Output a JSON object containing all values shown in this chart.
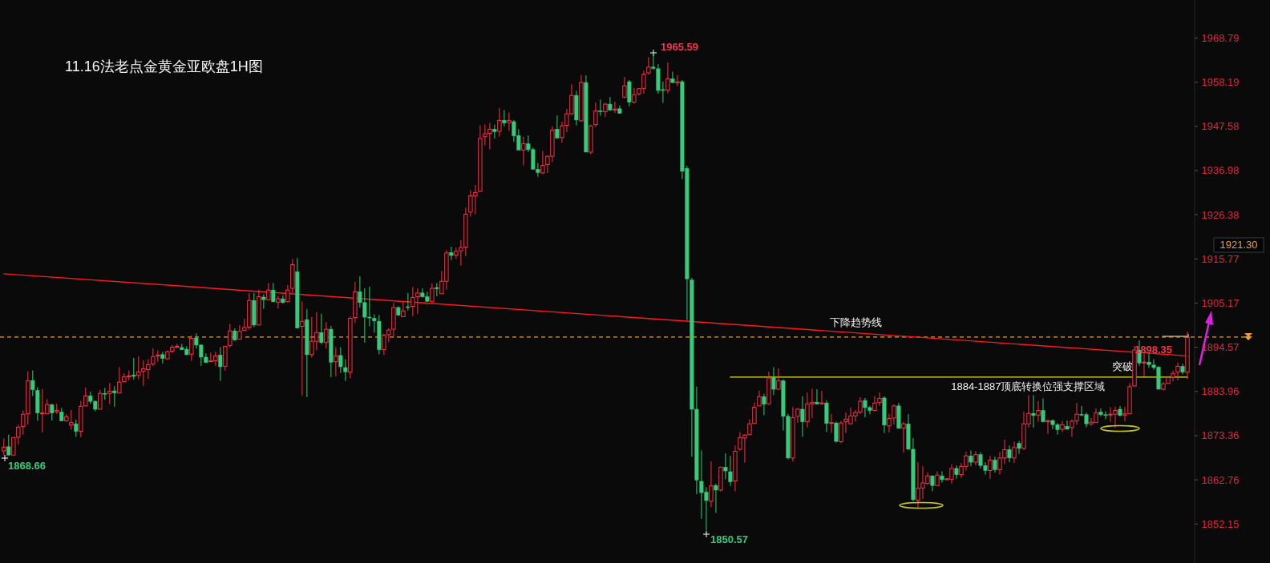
{
  "chart_data": {
    "type": "candlestick",
    "title": "11.16法老点金黄金亚欧盘1H图",
    "categories": [
      null,
      null,
      null,
      null,
      null,
      null,
      null,
      null,
      null,
      null,
      null,
      null,
      null,
      null,
      null,
      null,
      null,
      null,
      null,
      null,
      null,
      null,
      null,
      null,
      null,
      null,
      null,
      null,
      null,
      null,
      null,
      null,
      null,
      null,
      null,
      null,
      null,
      null,
      null,
      null,
      null,
      null,
      null,
      null,
      null,
      null,
      null,
      null,
      null,
      null,
      null,
      null,
      null,
      null,
      null,
      null,
      null,
      null,
      null,
      null,
      null,
      null,
      null,
      null,
      null,
      null,
      null,
      null,
      null,
      null,
      null,
      null,
      null,
      null,
      null,
      null,
      null,
      null,
      null,
      null,
      null,
      null,
      null,
      null,
      null,
      null,
      null,
      null,
      null,
      null,
      null,
      null,
      null,
      null,
      null,
      null,
      null,
      null,
      null,
      null,
      null,
      null,
      null,
      null,
      null,
      null,
      null,
      null,
      null,
      null,
      null,
      null,
      null,
      null,
      null,
      null,
      null,
      null,
      null,
      null,
      null,
      null,
      null,
      null,
      null,
      null,
      null,
      null,
      null,
      null,
      null,
      null,
      null,
      null,
      null,
      null,
      null,
      null,
      null,
      null,
      null,
      null,
      null,
      null,
      null,
      null,
      null,
      null,
      null,
      null,
      null,
      null,
      null,
      null,
      null,
      null,
      null,
      null,
      null,
      null,
      null,
      null,
      null,
      null,
      null,
      null,
      null,
      null,
      null,
      null,
      null,
      null,
      null,
      null,
      null,
      null,
      null,
      null,
      null,
      null,
      null,
      null,
      null,
      null,
      null,
      null,
      null,
      null,
      null,
      null,
      null,
      null,
      null,
      null,
      null,
      null,
      null,
      null,
      null,
      null,
      null,
      null,
      null,
      null,
      null,
      null,
      null,
      null,
      null,
      null,
      null,
      null,
      null,
      null,
      null,
      null,
      null,
      null,
      null,
      null,
      null,
      null,
      null,
      null,
      null,
      null,
      null,
      null,
      null,
      null,
      null,
      null,
      null,
      null,
      null,
      null,
      null,
      null,
      null,
      null,
      null,
      null,
      null,
      null,
      null,
      null,
      null
    ],
    "colors": [
      "#f0364a",
      "#38c97c",
      "#f0364a",
      "#f0364a",
      "#f0364a",
      "#f0364a",
      "#38c97c",
      "#38c97c",
      "#f0364a",
      "#f0364a",
      "#38c97c",
      "#f0364a",
      "#38c97c",
      "#f0364a",
      "#f0364a",
      "#38c97c",
      "#f0364a",
      "#f0364a",
      "#38c97c",
      "#38c97c",
      "#f0364a",
      "#38c97c",
      "#f0364a",
      "#38c97c",
      "#f0364a",
      "#f0364a",
      "#f0364a",
      "#38c97c",
      "#f0364a",
      "#f0364a",
      "#f0364a",
      "#f0364a",
      "#f0364a",
      "#38c97c",
      "#f0364a",
      "#f0364a",
      "#f0364a",
      "#38c97c",
      "#38c97c",
      "#f0364a",
      "#38c97c",
      "#38c97c",
      "#38c97c",
      "#f0364a",
      "#f0364a",
      "#38c97c",
      "#f0364a",
      "#f0364a",
      "#38c97c",
      "#f0364a",
      "#f0364a",
      "#f0364a",
      "#38c97c",
      "#f0364a",
      "#38c97c",
      "#f0364a",
      "#38c97c",
      "#f0364a",
      "#38c97c",
      "#f0364a",
      "#f0364a",
      "#38c97c",
      "#f0364a",
      "#38c97c",
      "#f0364a",
      "#f0364a",
      "#38c97c",
      "#f0364a",
      "#38c97c",
      "#f0364a",
      "#38c97c",
      "#38c97c",
      "#f0364a",
      "#f0364a",
      "#38c97c",
      "#38c97c",
      "#38c97c",
      "#38c97c",
      "#38c97c",
      "#f0364a",
      "#f0364a",
      "#f0364a",
      "#38c97c",
      "#f0364a",
      "#38c97c",
      "#f0364a",
      "#f0364a",
      "#38c97c",
      "#38c97c",
      "#f0364a",
      "#38c97c",
      "#f0364a",
      "#f0364a",
      "#38c97c",
      "#f0364a",
      "#f0364a",
      "#f0364a",
      "#f0364a",
      "#f0364a",
      "#f0364a",
      "#f0364a",
      "#f0364a",
      "#38c97c",
      "#f0364a",
      "#38c97c",
      "#f0364a",
      "#38c97c",
      "#38c97c",
      "#f0364a",
      "#38c97c",
      "#38c97c",
      "#38c97c",
      "#f0364a",
      "#f0364a",
      "#f0364a",
      "#38c97c",
      "#f0364a",
      "#f0364a",
      "#f0364a",
      "#38c97c",
      "#f0364a",
      "#38c97c",
      "#f0364a",
      "#f0364a",
      "#38c97c",
      "#f0364a",
      "#38c97c",
      "#f0364a",
      "#38c97c",
      "#f0364a",
      "#38c97c",
      "#f0364a",
      "#f0364a",
      "#f0364a",
      "#f0364a",
      "#38c97c",
      "#38c97c",
      "#38c97c",
      "#f0364a",
      "#38c97c",
      "#f0364a",
      "#38c97c",
      "#38c97c",
      "#38c97c",
      "#38c97c",
      "#38c97c",
      "#38c97c",
      "#f0364a",
      "#38c97c",
      "#f0364a",
      "#38c97c",
      "#38c97c",
      "#f0364a",
      "#f0364a",
      "#f0364a",
      "#f0364a",
      "#f0364a",
      "#f0364a",
      "#38c97c",
      "#f0364a",
      "#38c97c",
      "#f0364a",
      "#38c97c",
      "#38c97c",
      "#f0364a",
      "#f0364a",
      "#38c97c",
      "#f0364a",
      "#f0364a",
      "#38c97c",
      "#f0364a",
      "#38c97c",
      "#f0364a",
      "#38c97c",
      "#f0364a",
      "#f0364a",
      "#f0364a",
      "#f0364a",
      "#f0364a",
      "#38c97c",
      "#38c97c",
      "#f0364a",
      "#f0364a",
      "#38c97c",
      "#f0364a",
      "#f0364a",
      "#38c97c",
      "#f0364a",
      "#38c97c",
      "#38c97c",
      "#f0364a",
      "#f0364a",
      "#f0364a",
      "#38c97c",
      "#f0364a",
      "#38c97c",
      "#f0364a",
      "#f0364a",
      "#38c97c",
      "#f0364a",
      "#f0364a",
      "#38c97c",
      "#f0364a",
      "#38c97c",
      "#38c97c",
      "#f0364a",
      "#38c97c",
      "#f0364a",
      "#f0364a",
      "#38c97c",
      "#f0364a",
      "#38c97c",
      "#f0364a",
      "#f0364a",
      "#38c97c",
      "#f0364a",
      "#38c97c",
      "#f0364a",
      "#38c97c",
      "#38c97c",
      "#f0364a",
      "#38c97c",
      "#f0364a",
      "#f0364a",
      "#38c97c",
      "#38c97c",
      "#f0364a",
      "#f0364a",
      "#38c97c",
      "#38c97c",
      "#f0364a",
      "#f0364a",
      "#38c97c",
      "#f0364a",
      "#f0364a",
      "#f0364a",
      "#38c97c",
      "#f0364a",
      "#38c97c",
      "#38c97c",
      "#38c97c",
      "#f0364a",
      "#f0364a",
      "#f0364a",
      "#f0364a",
      "#38c97c",
      "#f0364a"
    ],
    "ohlc": [
      [
        1869.7,
        1872.7,
        1868.66,
        1870.6
      ],
      [
        1870.7,
        1873.6,
        1868.7,
        1868.7
      ],
      [
        1868.7,
        1872.9,
        1868.7,
        1872.9
      ],
      [
        1873.0,
        1876.0,
        1871.2,
        1875.4
      ],
      [
        1875.6,
        1879.4,
        1873.6,
        1878.5
      ],
      [
        1878.6,
        1888.8,
        1876.0,
        1886.5
      ],
      [
        1886.6,
        1889.0,
        1882.9,
        1884.4
      ],
      [
        1884.2,
        1885.0,
        1877.0,
        1878.8
      ],
      [
        1878.7,
        1884.5,
        1874.1,
        1878.8
      ],
      [
        1878.6,
        1882.1,
        1878.6,
        1880.8
      ],
      [
        1880.8,
        1881.0,
        1877.0,
        1878.8
      ],
      [
        1879.1,
        1881.0,
        1878.6,
        1879.4
      ],
      [
        1879.0,
        1880.0,
        1876.8,
        1876.9
      ],
      [
        1876.9,
        1878.5,
        1876.7,
        1877.9
      ],
      [
        1875.9,
        1879.5,
        1874.8,
        1876.5
      ],
      [
        1876.2,
        1877.2,
        1873.1,
        1874.4
      ],
      [
        1874.4,
        1881.7,
        1873.0,
        1880.4
      ],
      [
        1880.5,
        1884.9,
        1880.4,
        1882.9
      ],
      [
        1882.9,
        1883.9,
        1881.0,
        1881.6
      ],
      [
        1881.6,
        1881.8,
        1879.2,
        1879.7
      ],
      [
        1879.7,
        1884.3,
        1879.7,
        1883.5
      ],
      [
        1883.5,
        1884.8,
        1882.0,
        1883.4
      ],
      [
        1883.5,
        1886.0,
        1880.9,
        1884.0
      ],
      [
        1884.1,
        1885.2,
        1880.3,
        1883.6
      ],
      [
        1883.6,
        1889.8,
        1883.6,
        1886.2
      ],
      [
        1886.3,
        1888.3,
        1886.2,
        1887.5
      ],
      [
        1887.6,
        1889.0,
        1886.6,
        1887.7
      ],
      [
        1887.9,
        1892.0,
        1886.8,
        1887.6
      ],
      [
        1887.8,
        1892.4,
        1886.9,
        1888.7
      ],
      [
        1888.8,
        1891.4,
        1885.3,
        1889.4
      ],
      [
        1889.2,
        1891.7,
        1887.0,
        1890.4
      ],
      [
        1890.6,
        1894.3,
        1890.1,
        1892.3
      ],
      [
        1892.6,
        1893.8,
        1891.1,
        1892.7
      ],
      [
        1892.8,
        1893.5,
        1890.7,
        1891.9
      ],
      [
        1891.8,
        1893.8,
        1891.7,
        1893.5
      ],
      [
        1893.6,
        1895.1,
        1893.2,
        1894.6
      ],
      [
        1894.7,
        1895.4,
        1894.3,
        1894.8
      ],
      [
        1894.5,
        1895.4,
        1893.9,
        1894.0
      ],
      [
        1894.1,
        1894.8,
        1892.7,
        1892.8
      ],
      [
        1892.9,
        1897.4,
        1891.3,
        1896.7
      ],
      [
        1896.8,
        1897.9,
        1894.3,
        1895.1
      ],
      [
        1895.1,
        1895.3,
        1890.1,
        1892.2
      ],
      [
        1892.2,
        1893.1,
        1890.8,
        1890.9
      ],
      [
        1891.2,
        1893.3,
        1891.1,
        1891.3
      ],
      [
        1891.3,
        1893.5,
        1890.1,
        1892.5
      ],
      [
        1892.7,
        1894.6,
        1886.5,
        1889.9
      ],
      [
        1890.0,
        1894.9,
        1889.0,
        1894.8
      ],
      [
        1895.0,
        1900.2,
        1894.4,
        1898.5
      ],
      [
        1898.5,
        1899.1,
        1896.2,
        1896.3
      ],
      [
        1896.5,
        1899.9,
        1896.4,
        1898.4
      ],
      [
        1898.6,
        1901.4,
        1898.5,
        1899.3
      ],
      [
        1899.4,
        1907.6,
        1898.8,
        1905.8
      ],
      [
        1905.8,
        1907.6,
        1899.4,
        1899.9
      ],
      [
        1899.9,
        1908.4,
        1899.9,
        1906.7
      ],
      [
        1906.6,
        1907.3,
        1903.8,
        1906.0
      ],
      [
        1906.0,
        1910.0,
        1905.8,
        1908.3
      ],
      [
        1908.3,
        1910.0,
        1905.4,
        1905.5
      ],
      [
        1905.4,
        1906.9,
        1903.9,
        1906.2
      ],
      [
        1906.2,
        1907.0,
        1905.1,
        1905.3
      ],
      [
        1905.5,
        1909.5,
        1905.4,
        1908.3
      ],
      [
        1908.7,
        1915.8,
        1907.6,
        1914.4
      ],
      [
        1912.7,
        1916.0,
        1899.1,
        1899.2
      ],
      [
        1899.6,
        1905.6,
        1883.0,
        1900.8
      ],
      [
        1901.2,
        1903.7,
        1882.6,
        1892.8
      ],
      [
        1892.8,
        1901.8,
        1892.1,
        1896.0
      ],
      [
        1896.0,
        1903.0,
        1893.8,
        1898.1
      ],
      [
        1898.1,
        1902.6,
        1895.3,
        1895.7
      ],
      [
        1895.7,
        1900.6,
        1894.3,
        1898.9
      ],
      [
        1898.9,
        1899.7,
        1887.4,
        1891.0
      ],
      [
        1891.1,
        1894.6,
        1887.6,
        1892.5
      ],
      [
        1892.6,
        1894.6,
        1888.4,
        1889.9
      ],
      [
        1889.7,
        1891.7,
        1886.5,
        1888.7
      ],
      [
        1888.6,
        1902.0,
        1887.1,
        1901.5
      ],
      [
        1901.7,
        1910.3,
        1900.4,
        1907.9
      ],
      [
        1907.9,
        1911.6,
        1904.1,
        1905.3
      ],
      [
        1905.3,
        1908.7,
        1895.7,
        1901.8
      ],
      [
        1901.8,
        1909.1,
        1899.6,
        1901.7
      ],
      [
        1901.5,
        1902.5,
        1898.1,
        1900.9
      ],
      [
        1900.8,
        1902.3,
        1892.9,
        1894.0
      ],
      [
        1894.0,
        1897.8,
        1892.7,
        1897.5
      ],
      [
        1897.6,
        1899.2,
        1895.8,
        1898.7
      ],
      [
        1898.9,
        1905.2,
        1897.0,
        1904.1
      ],
      [
        1904.1,
        1904.4,
        1902.1,
        1902.3
      ],
      [
        1901.9,
        1905.5,
        1901.8,
        1903.3
      ],
      [
        1904.3,
        1907.6,
        1903.4,
        1904.2
      ],
      [
        1904.4,
        1909.0,
        1902.0,
        1906.5
      ],
      [
        1906.7,
        1908.7,
        1902.6,
        1907.6
      ],
      [
        1907.6,
        1908.7,
        1906.5,
        1906.7
      ],
      [
        1906.7,
        1907.9,
        1905.5,
        1905.6
      ],
      [
        1905.6,
        1909.9,
        1905.2,
        1908.7
      ],
      [
        1908.9,
        1910.0,
        1906.8,
        1908.6
      ],
      [
        1907.4,
        1912.9,
        1907.4,
        1910.4
      ],
      [
        1910.4,
        1917.9,
        1908.4,
        1917.2
      ],
      [
        1917.3,
        1918.7,
        1915.5,
        1916.6
      ],
      [
        1916.7,
        1918.5,
        1915.8,
        1917.6
      ],
      [
        1917.7,
        1920.3,
        1914.2,
        1918.5
      ],
      [
        1918.6,
        1928.1,
        1916.4,
        1926.5
      ],
      [
        1927.0,
        1932.3,
        1925.9,
        1930.9
      ],
      [
        1930.9,
        1933.5,
        1926.5,
        1931.7
      ],
      [
        1932.0,
        1947.8,
        1931.8,
        1944.7
      ],
      [
        1945.1,
        1948.0,
        1943.0,
        1945.8
      ],
      [
        1945.9,
        1948.4,
        1942.1,
        1946.9
      ],
      [
        1946.9,
        1948.0,
        1944.7,
        1946.3
      ],
      [
        1946.4,
        1952.0,
        1945.1,
        1949.0
      ],
      [
        1949.0,
        1951.5,
        1947.6,
        1948.4
      ],
      [
        1948.5,
        1950.9,
        1946.5,
        1949.0
      ],
      [
        1948.7,
        1949.1,
        1943.9,
        1945.3
      ],
      [
        1945.4,
        1946.9,
        1941.9,
        1941.9
      ],
      [
        1941.9,
        1945.1,
        1938.2,
        1943.4
      ],
      [
        1943.4,
        1945.4,
        1941.4,
        1942.0
      ],
      [
        1942.0,
        1942.5,
        1937.3,
        1937.3
      ],
      [
        1937.3,
        1938.8,
        1935.5,
        1936.5
      ],
      [
        1936.4,
        1941.7,
        1936.2,
        1938.2
      ],
      [
        1938.4,
        1940.6,
        1936.4,
        1940.4
      ],
      [
        1940.4,
        1947.6,
        1939.0,
        1946.7
      ],
      [
        1946.9,
        1950.2,
        1944.7,
        1944.8
      ],
      [
        1944.9,
        1948.7,
        1943.7,
        1947.7
      ],
      [
        1947.8,
        1951.8,
        1946.2,
        1950.6
      ],
      [
        1950.6,
        1957.7,
        1950.4,
        1955.0
      ],
      [
        1955.0,
        1956.1,
        1947.8,
        1949.1
      ],
      [
        1948.9,
        1959.9,
        1948.7,
        1958.1
      ],
      [
        1958.1,
        1959.8,
        1941.4,
        1941.4
      ],
      [
        1941.4,
        1948.0,
        1940.9,
        1947.7
      ],
      [
        1948.0,
        1953.3,
        1947.4,
        1951.3
      ],
      [
        1951.3,
        1954.0,
        1950.1,
        1951.2
      ],
      [
        1951.1,
        1953.2,
        1949.8,
        1952.9
      ],
      [
        1952.9,
        1954.6,
        1951.3,
        1951.5
      ],
      [
        1951.5,
        1953.5,
        1950.8,
        1951.7
      ],
      [
        1951.8,
        1952.6,
        1950.6,
        1950.7
      ],
      [
        1954.6,
        1959.4,
        1954.3,
        1957.3
      ],
      [
        1958.3,
        1958.7,
        1952.4,
        1953.4
      ],
      [
        1953.4,
        1956.8,
        1953.0,
        1955.2
      ],
      [
        1955.4,
        1956.8,
        1955.0,
        1956.6
      ],
      [
        1956.7,
        1960.9,
        1955.4,
        1960.1
      ],
      [
        1960.4,
        1964.2,
        1960.0,
        1961.8
      ],
      [
        1961.8,
        1965.59,
        1961.2,
        1961.5
      ],
      [
        1961.4,
        1962.5,
        1955.4,
        1956.2
      ],
      [
        1956.4,
        1958.3,
        1953.2,
        1956.3
      ],
      [
        1956.3,
        1962.9,
        1955.5,
        1959.0
      ],
      [
        1959.0,
        1960.7,
        1957.9,
        1958.1
      ],
      [
        1958.0,
        1959.9,
        1957.2,
        1958.3
      ],
      [
        1958.3,
        1958.7,
        1934.9,
        1936.8
      ],
      [
        1937.5,
        1938.1,
        1901.1,
        1911.0
      ],
      [
        1910.7,
        1911.2,
        1868.3,
        1879.7
      ],
      [
        1879.7,
        1885.1,
        1859.3,
        1862.7
      ],
      [
        1862.4,
        1869.8,
        1853.4,
        1859.7
      ],
      [
        1859.8,
        1861.0,
        1850.57,
        1857.8
      ],
      [
        1857.6,
        1867.2,
        1856.2,
        1861.3
      ],
      [
        1861.4,
        1861.8,
        1854.8,
        1860.3
      ],
      [
        1860.3,
        1865.9,
        1860.0,
        1865.8
      ],
      [
        1865.8,
        1869.1,
        1862.9,
        1864.9
      ],
      [
        1864.7,
        1868.5,
        1861.3,
        1862.3
      ],
      [
        1862.5,
        1871.0,
        1860.0,
        1869.6
      ],
      [
        1870.1,
        1874.2,
        1869.8,
        1872.9
      ],
      [
        1872.8,
        1873.7,
        1866.9,
        1873.5
      ],
      [
        1873.6,
        1877.3,
        1873.5,
        1876.2
      ],
      [
        1876.3,
        1881.3,
        1876.2,
        1880.2
      ],
      [
        1880.5,
        1884.2,
        1880.4,
        1882.7
      ],
      [
        1882.7,
        1883.4,
        1878.3,
        1880.9
      ],
      [
        1881.0,
        1888.7,
        1880.8,
        1887.2
      ],
      [
        1887.3,
        1889.8,
        1883.1,
        1884.5
      ],
      [
        1884.5,
        1889.5,
        1884.4,
        1886.5
      ],
      [
        1886.5,
        1886.9,
        1874.6,
        1878.0
      ],
      [
        1878.0,
        1878.6,
        1867.7,
        1868.0
      ],
      [
        1868.0,
        1880.2,
        1867.1,
        1877.7
      ],
      [
        1878.0,
        1880.0,
        1876.4,
        1879.7
      ],
      [
        1879.7,
        1882.8,
        1873.1,
        1876.7
      ],
      [
        1876.7,
        1883.7,
        1875.3,
        1881.0
      ],
      [
        1881.0,
        1884.6,
        1877.6,
        1881.3
      ],
      [
        1881.4,
        1884.5,
        1880.8,
        1881.0
      ],
      [
        1881.0,
        1884.1,
        1880.8,
        1881.2
      ],
      [
        1881.2,
        1881.8,
        1874.2,
        1876.3
      ],
      [
        1876.4,
        1878.6,
        1874.0,
        1876.5
      ],
      [
        1876.4,
        1876.7,
        1871.7,
        1872.0
      ],
      [
        1871.9,
        1876.9,
        1871.6,
        1876.4
      ],
      [
        1876.7,
        1878.9,
        1874.0,
        1877.3
      ],
      [
        1876.2,
        1880.1,
        1876.0,
        1878.1
      ],
      [
        1878.1,
        1879.5,
        1876.7,
        1878.9
      ],
      [
        1879.0,
        1882.6,
        1878.6,
        1881.6
      ],
      [
        1881.8,
        1882.4,
        1877.8,
        1880.1
      ],
      [
        1880.1,
        1880.5,
        1878.5,
        1879.4
      ],
      [
        1879.4,
        1882.9,
        1879.2,
        1881.2
      ],
      [
        1881.3,
        1883.7,
        1880.5,
        1882.3
      ],
      [
        1882.4,
        1882.8,
        1874.0,
        1875.9
      ],
      [
        1875.7,
        1878.6,
        1874.1,
        1877.5
      ],
      [
        1877.6,
        1880.8,
        1876.0,
        1880.5
      ],
      [
        1880.5,
        1881.2,
        1875.1,
        1875.1
      ],
      [
        1875.2,
        1876.7,
        1869.3,
        1876.2
      ],
      [
        1876.2,
        1878.5,
        1870.1,
        1870.1
      ],
      [
        1870.1,
        1872.8,
        1857.6,
        1858.0
      ],
      [
        1857.9,
        1867.0,
        1855.9,
        1860.7
      ],
      [
        1860.8,
        1866.0,
        1858.2,
        1862.0
      ],
      [
        1861.9,
        1864.5,
        1861.6,
        1863.7
      ],
      [
        1863.7,
        1863.9,
        1860.0,
        1861.4
      ],
      [
        1861.4,
        1864.8,
        1861.3,
        1863.9
      ],
      [
        1863.7,
        1864.8,
        1862.1,
        1862.8
      ],
      [
        1862.9,
        1863.2,
        1862.6,
        1863.0
      ],
      [
        1862.9,
        1866.5,
        1861.8,
        1865.5
      ],
      [
        1865.5,
        1866.2,
        1863.0,
        1864.0
      ],
      [
        1864.0,
        1866.8,
        1863.2,
        1866.0
      ],
      [
        1866.0,
        1869.5,
        1865.0,
        1868.5
      ],
      [
        1868.5,
        1869.8,
        1866.0,
        1867.0
      ],
      [
        1867.0,
        1869.6,
        1866.2,
        1868.8
      ],
      [
        1868.8,
        1869.4,
        1865.5,
        1866.2
      ],
      [
        1866.2,
        1867.0,
        1864.0,
        1865.0
      ],
      [
        1865.0,
        1868.5,
        1863.0,
        1867.5
      ],
      [
        1867.5,
        1868.3,
        1864.5,
        1865.2
      ],
      [
        1865.2,
        1869.4,
        1864.0,
        1868.0
      ],
      [
        1868.0,
        1872.4,
        1866.5,
        1870.0
      ],
      [
        1870.0,
        1871.0,
        1867.0,
        1868.0
      ],
      [
        1868.0,
        1871.9,
        1866.8,
        1870.5
      ],
      [
        1871.5,
        1872.1,
        1869.0,
        1870.3
      ],
      [
        1870.3,
        1879.1,
        1869.9,
        1876.2
      ],
      [
        1876.2,
        1883.1,
        1875.3,
        1878.7
      ],
      [
        1878.7,
        1883.1,
        1875.3,
        1878.2
      ],
      [
        1878.3,
        1881.7,
        1876.7,
        1879.4
      ],
      [
        1879.4,
        1882.3,
        1876.7,
        1876.7
      ],
      [
        1876.7,
        1877.3,
        1873.8,
        1876.9
      ],
      [
        1877.0,
        1877.2,
        1874.9,
        1876.0
      ],
      [
        1876.0,
        1876.4,
        1873.6,
        1874.8
      ],
      [
        1874.9,
        1876.9,
        1874.2,
        1876.0
      ],
      [
        1875.6,
        1877.0,
        1874.8,
        1874.9
      ],
      [
        1875.3,
        1877.3,
        1873.1,
        1876.8
      ],
      [
        1876.9,
        1881.2,
        1876.0,
        1878.5
      ],
      [
        1878.5,
        1880.5,
        1878.1,
        1878.4
      ],
      [
        1878.4,
        1878.9,
        1875.4,
        1876.2
      ],
      [
        1876.2,
        1877.6,
        1875.7,
        1876.6
      ],
      [
        1876.5,
        1879.9,
        1876.4,
        1878.8
      ],
      [
        1879.0,
        1879.9,
        1878.0,
        1878.4
      ],
      [
        1878.4,
        1879.2,
        1877.3,
        1878.3
      ],
      [
        1878.4,
        1880.2,
        1876.7,
        1878.5
      ],
      [
        1878.5,
        1880.3,
        1875.3,
        1879.4
      ],
      [
        1879.7,
        1880.5,
        1878.0,
        1878.2
      ],
      [
        1878.3,
        1880.3,
        1876.8,
        1878.6
      ],
      [
        1878.6,
        1886.0,
        1878.6,
        1885.1
      ],
      [
        1885.3,
        1894.9,
        1885.0,
        1893.9
      ],
      [
        1893.9,
        1896.2,
        1890.1,
        1890.8
      ],
      [
        1890.9,
        1893.0,
        1887.6,
        1891.0
      ],
      [
        1891.0,
        1893.0,
        1889.6,
        1890.4
      ],
      [
        1890.3,
        1891.7,
        1889.2,
        1889.7
      ],
      [
        1889.8,
        1890.0,
        1884.5,
        1884.5
      ],
      [
        1884.5,
        1886.2,
        1884.2,
        1885.8
      ],
      [
        1885.9,
        1887.7,
        1885.8,
        1887.3
      ],
      [
        1887.4,
        1889.0,
        1886.4,
        1888.3
      ],
      [
        1888.6,
        1890.9,
        1886.6,
        1890.0
      ],
      [
        1890.0,
        1890.6,
        1888.1,
        1888.6
      ],
      [
        1888.6,
        1898.35,
        1886.9,
        1896.9
      ]
    ],
    "series": [
      {
        "type": "line",
        "name": "下降趋势线",
        "color": "#ff1a1a",
        "values": [
          1912.2,
          null,
          null,
          null,
          null,
          null,
          null,
          null,
          null,
          null,
          null,
          null,
          null,
          null,
          null,
          null,
          null,
          null,
          null,
          null,
          null,
          null,
          null,
          null,
          null,
          null,
          null,
          null,
          null,
          null,
          null,
          null,
          null,
          null,
          null,
          null,
          null,
          null,
          null,
          null,
          null,
          null,
          null,
          null,
          null,
          null,
          null,
          null,
          null,
          null,
          null,
          null,
          null,
          null,
          null,
          null,
          null,
          null,
          null,
          null,
          null,
          null,
          null,
          null,
          null,
          null,
          null,
          null,
          null,
          null,
          null,
          null,
          null,
          null,
          null,
          null,
          null,
          null,
          null,
          null,
          null,
          null,
          null,
          null,
          null,
          null,
          null,
          null,
          null,
          null,
          null,
          null,
          null,
          null,
          null,
          null,
          null,
          null,
          null,
          null,
          null,
          null,
          null,
          null,
          null,
          null,
          null,
          null,
          null,
          null,
          null,
          null,
          null,
          null,
          null,
          null,
          null,
          null,
          null,
          null,
          null,
          null,
          null,
          null,
          null,
          null,
          null,
          null,
          null,
          null,
          null,
          null,
          null,
          null,
          null,
          null,
          null,
          null,
          null,
          null,
          null,
          null,
          null,
          null,
          null,
          null,
          null,
          null,
          null,
          null,
          null,
          null,
          null,
          null,
          null,
          null,
          null,
          null,
          null,
          null,
          null,
          null,
          null,
          null,
          null,
          null,
          null,
          null,
          null,
          null,
          null,
          null,
          null,
          null,
          null,
          null,
          null,
          null,
          null,
          null,
          null,
          null,
          null,
          null,
          null,
          null,
          null,
          null,
          null,
          null,
          null,
          null,
          null,
          null,
          null,
          null,
          null,
          null,
          null,
          null,
          null,
          null,
          null,
          null,
          null,
          null,
          null,
          null,
          null,
          null,
          null,
          null,
          null,
          null,
          null,
          null,
          null,
          null,
          null,
          null,
          null,
          null,
          null,
          null,
          null,
          null,
          null,
          null,
          null,
          null,
          null,
          null,
          null,
          null,
          null,
          null,
          null,
          null,
          null,
          null,
          null,
          null,
          null,
          null,
          null,
          null,
          1892.5
        ]
      },
      {
        "type": "line",
        "name": "1884-1887顶底转换位强支撑区域",
        "color": "#e6e619",
        "values": [
          null,
          null,
          null,
          null,
          null,
          null,
          null,
          null,
          null,
          null,
          null,
          null,
          null,
          null,
          null,
          null,
          null,
          null,
          null,
          null,
          null,
          null,
          null,
          null,
          null,
          null,
          null,
          null,
          null,
          null,
          null,
          null,
          null,
          null,
          null,
          null,
          null,
          null,
          null,
          null,
          null,
          null,
          null,
          null,
          null,
          null,
          null,
          null,
          null,
          null,
          null,
          null,
          null,
          null,
          null,
          null,
          null,
          null,
          null,
          null,
          null,
          null,
          null,
          null,
          null,
          null,
          null,
          null,
          null,
          null,
          null,
          null,
          null,
          null,
          null,
          null,
          null,
          null,
          null,
          null,
          null,
          null,
          null,
          null,
          null,
          null,
          null,
          null,
          null,
          null,
          null,
          null,
          null,
          null,
          null,
          null,
          null,
          null,
          null,
          null,
          null,
          null,
          null,
          null,
          null,
          null,
          null,
          null,
          null,
          null,
          null,
          null,
          null,
          null,
          null,
          null,
          null,
          null,
          null,
          null,
          null,
          null,
          null,
          null,
          null,
          null,
          null,
          null,
          null,
          null,
          null,
          null,
          null,
          null,
          null,
          null,
          null,
          null,
          null,
          null,
          null,
          null,
          null,
          null,
          null,
          null,
          null,
          null,
          null,
          null,
          null,
          1887.4,
          null,
          null,
          null,
          null,
          null,
          null,
          null,
          null,
          null,
          null,
          null,
          null,
          null,
          null,
          null,
          null,
          null,
          null,
          null,
          null,
          null,
          null,
          null,
          null,
          null,
          null,
          null,
          null,
          null,
          null,
          null,
          null,
          null,
          null,
          null,
          null,
          null,
          null,
          null,
          null,
          null,
          null,
          null,
          null,
          null,
          null,
          null,
          null,
          null,
          null,
          null,
          null,
          null,
          null,
          null,
          null,
          null,
          null,
          null,
          null,
          null,
          null,
          null,
          null,
          null,
          null,
          null,
          null,
          null,
          null,
          null,
          null,
          null,
          null,
          null,
          null,
          null,
          null,
          null,
          null,
          null,
          null,
          null,
          null,
          null,
          null,
          null,
          null,
          null,
          null,
          null,
          null,
          null,
          null,
          1887.4
        ]
      }
    ],
    "ylim": [
      1842.8,
      1977.9
    ],
    "yticks": [
      1852.15,
      1862.76,
      1873.36,
      1883.96,
      1894.57,
      1905.17,
      1915.77,
      1926.38,
      1936.98,
      1947.58,
      1958.19,
      1968.79
    ],
    "ref_lines": [
      {
        "axis": "y",
        "value": 1897.0,
        "color": "#e8a040",
        "line_style": "dashed"
      }
    ],
    "annotations": [
      "1965.59",
      "1868.66",
      "1850.57",
      "1898.35",
      "突破",
      "1921.30"
    ],
    "grid": false,
    "legend": false
  }
}
